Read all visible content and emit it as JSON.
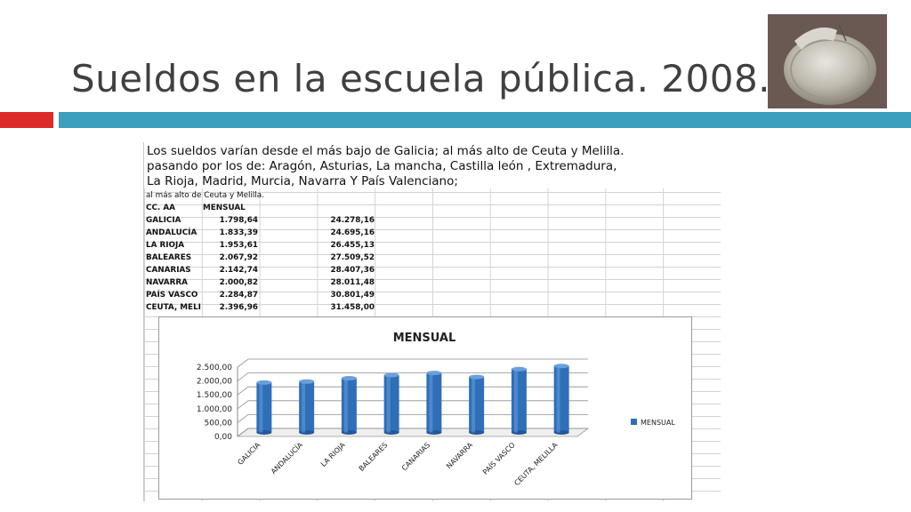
{
  "slide": {
    "title": "Sueldos en la escuela pública. 2008."
  },
  "colors": {
    "accent_red": "#dd2b2b",
    "accent_blue": "#3c9fbd",
    "bar_blue": "#2e6fb8"
  },
  "sheet": {
    "heading_lines": [
      "Los sueldos varían desde el más bajo de Galicia;  al más alto de Ceuta y Melilla.",
      "pasando por los de:  Aragón, Asturias, La mancha, Castilla león , Extremadura,",
      "La Rioja, Madrid, Murcia, Navarra Y País Valenciano;"
    ],
    "note": "al más alto de Ceuta y Melilla.",
    "header": {
      "col1": "CC. AA",
      "col2": "MENSUAL"
    },
    "rows": [
      {
        "region": "GALICIA",
        "mensual": "1.798,64",
        "anual": "24.278,16"
      },
      {
        "region": "ANDALUCÍA",
        "mensual": "1.833,39",
        "anual": "24.695,16"
      },
      {
        "region": "LA RIOJA",
        "mensual": "1.953,61",
        "anual": "26.455,13"
      },
      {
        "region": "BALEARES",
        "mensual": "2.067,92",
        "anual": "27.509,52"
      },
      {
        "region": "CANARIAS",
        "mensual": "2.142,74",
        "anual": "28.407,36"
      },
      {
        "region": "NAVARRA",
        "mensual": "2.000,82",
        "anual": "28.011,48"
      },
      {
        "region": "PAÍS VASCO",
        "mensual": "2.284,87",
        "anual": "30.801,49"
      },
      {
        "region": "CEUTA, MELI",
        "mensual": "2.396,96",
        "anual": "31.458,00"
      }
    ]
  },
  "chart_data": {
    "type": "bar",
    "title": "MENSUAL",
    "categories": [
      "GALICIA",
      "ANDALUCÍA",
      "LA RIOJA",
      "BALEARES",
      "CANARIAS",
      "NAVARRA",
      "PAÍS VASCO",
      "CEUTA, MELILLA"
    ],
    "series": [
      {
        "name": "MENSUAL",
        "values": [
          1798.64,
          1833.39,
          1953.61,
          2067.92,
          2142.74,
          2000.82,
          2284.87,
          2396.96
        ]
      }
    ],
    "yticks": [
      "0,00",
      "500,00",
      "1.000,00",
      "1.500,00",
      "2.000,00",
      "2.500,00"
    ],
    "ylim": [
      0,
      2500
    ],
    "grid": true,
    "legend": "right"
  }
}
